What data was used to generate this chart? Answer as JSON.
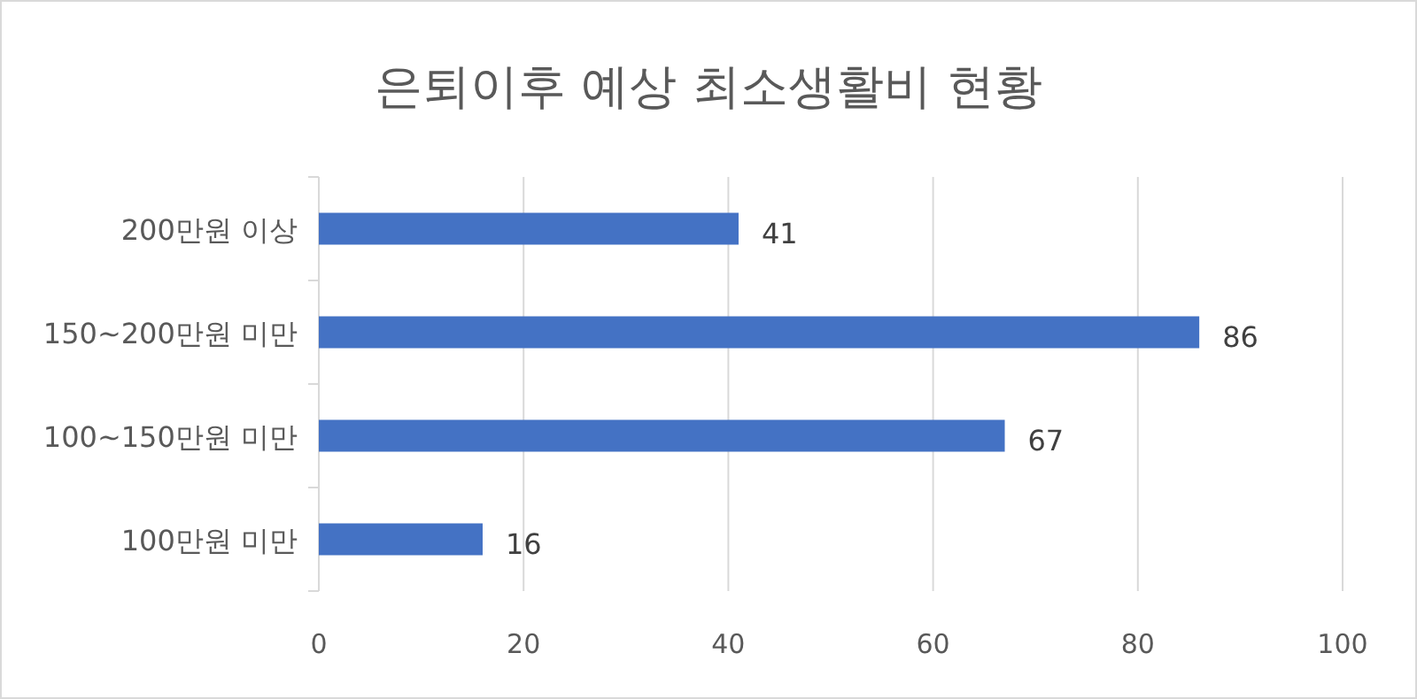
{
  "chart_data": {
    "type": "bar",
    "orientation": "horizontal",
    "title": "은퇴이후 예상 최소생활비 현황",
    "categories": [
      "200만원 이상",
      "150~200만원 미만",
      "100~150만원 미만",
      "100만원 미만"
    ],
    "values": [
      41,
      86,
      67,
      16
    ],
    "color": "#4472c4",
    "data_labels": true,
    "xlim": [
      0,
      100
    ],
    "xticks": [
      0,
      20,
      40,
      60,
      80,
      100
    ],
    "grid": "x"
  }
}
